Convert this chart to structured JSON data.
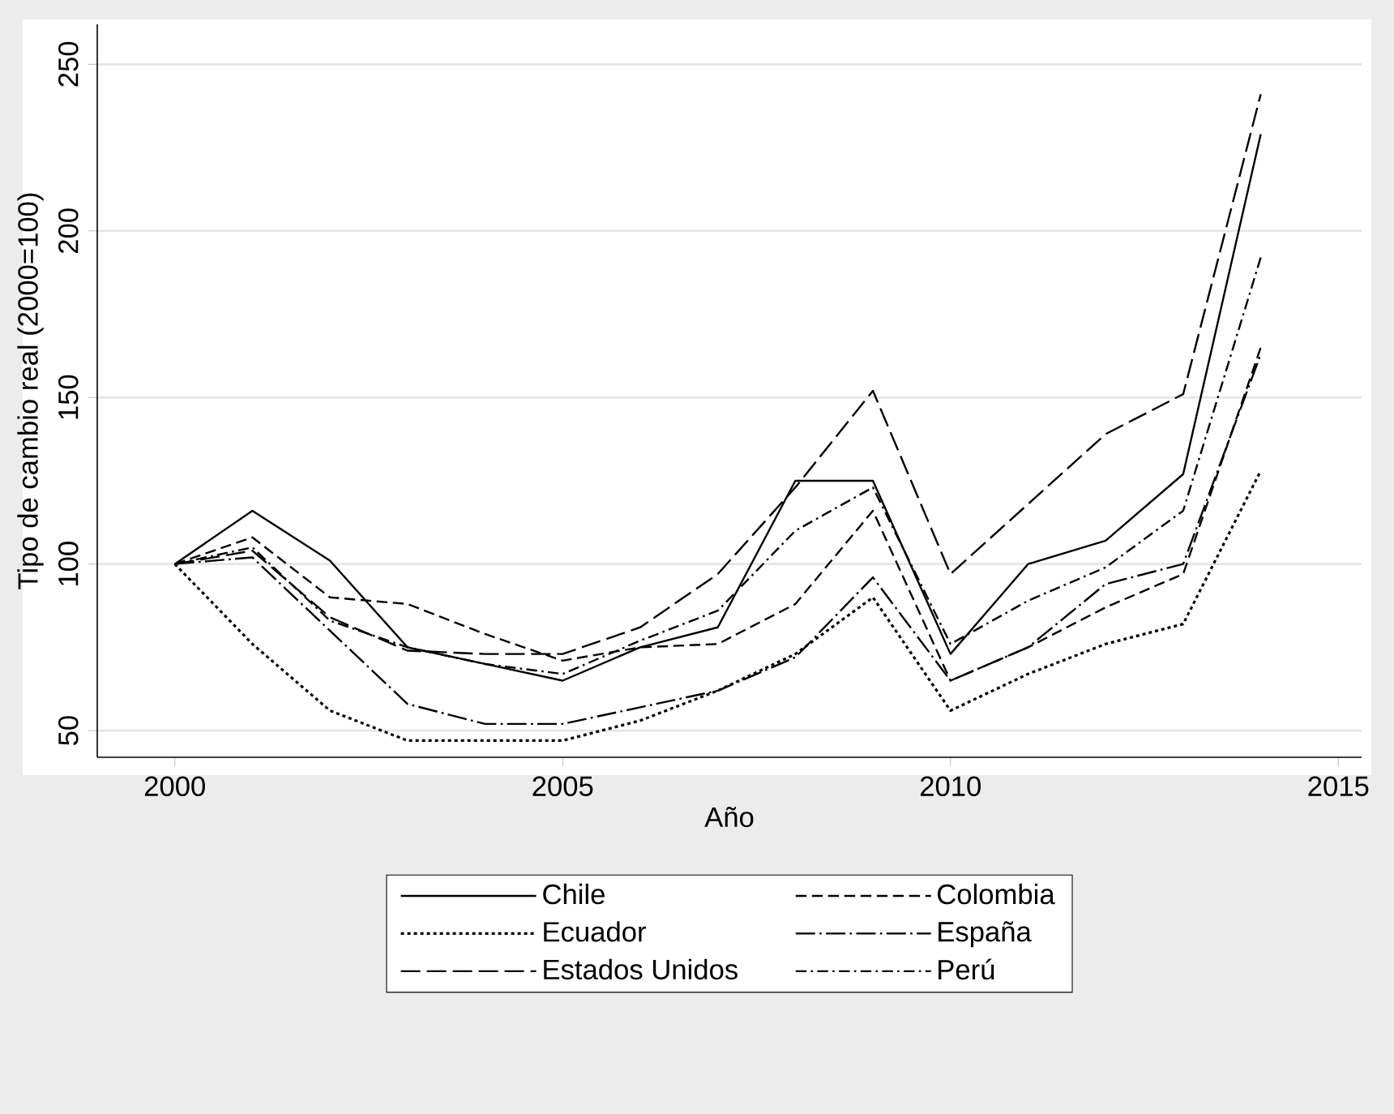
{
  "chart_data": {
    "type": "line",
    "xlabel": "Año",
    "ylabel": "Tipo de cambio real (2000=100)",
    "x": [
      2000,
      2001,
      2002,
      2003,
      2004,
      2005,
      2006,
      2007,
      2008,
      2009,
      2010,
      2011,
      2012,
      2013,
      2014
    ],
    "xlim": [
      1999,
      2015.3
    ],
    "ylim": [
      42,
      262
    ],
    "xticks": [
      2000,
      2005,
      2010,
      2015
    ],
    "yticks": [
      50,
      100,
      150,
      200,
      250
    ],
    "grid": "y",
    "legend": "bottom",
    "marker": "none",
    "series": [
      {
        "name": "Chile",
        "color": "#000000",
        "line_style": "solid",
        "values": [
          100,
          116,
          101,
          75,
          70,
          65,
          75,
          81,
          125,
          125,
          73,
          100,
          107,
          127,
          229
        ]
      },
      {
        "name": "Colombia",
        "color": "#000000",
        "line_style": "dashed",
        "values": [
          100,
          108,
          90,
          88,
          79,
          71,
          75,
          76,
          88,
          116,
          65,
          75,
          87,
          97,
          165
        ]
      },
      {
        "name": "Ecuador",
        "color": "#000000",
        "line_style": "dotted",
        "values": [
          100,
          76,
          56,
          47,
          47,
          47,
          53,
          62,
          73,
          90,
          56,
          67,
          76,
          82,
          128
        ]
      },
      {
        "name": "España",
        "color": "#000000",
        "line_style": "longdashdot",
        "values": [
          100,
          102,
          80,
          58,
          52,
          52,
          57,
          62,
          72,
          96,
          65,
          75,
          94,
          100,
          163
        ]
      },
      {
        "name": "Estados Unidos",
        "color": "#000000",
        "line_style": "longdash",
        "values": [
          100,
          104,
          84,
          74,
          73,
          73,
          81,
          97,
          123,
          152,
          97,
          118,
          139,
          151,
          241
        ]
      },
      {
        "name": "Perú",
        "color": "#000000",
        "line_style": "dashdot",
        "values": [
          100,
          105,
          83,
          75,
          70,
          67,
          77,
          86,
          110,
          123,
          76,
          89,
          99,
          116,
          192
        ]
      }
    ]
  }
}
